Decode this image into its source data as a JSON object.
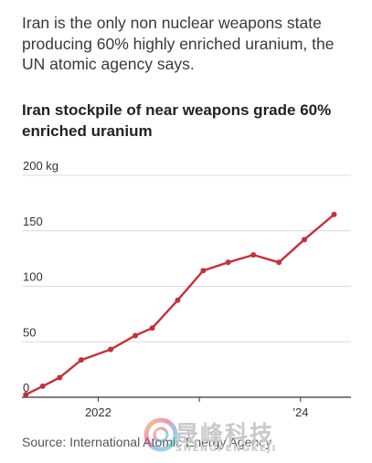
{
  "caption": "Iran is the only non nuclear weapons state producing 60% highly enriched uranium, the UN atomic agency says.",
  "chart_data": {
    "type": "line",
    "title": "Iran stockpile of near weapons grade 60% enriched uranium",
    "xlabel": "",
    "ylabel": "",
    "unit": "kg",
    "ylim": [
      0,
      200
    ],
    "yticks": [
      0,
      50,
      100,
      150,
      200
    ],
    "ytick_labels": [
      "0",
      "50",
      "100",
      "150",
      "200 kg"
    ],
    "xticks": [
      {
        "x": "2022-01-01",
        "label": "2022"
      },
      {
        "x": "2023-01-01",
        "label": ""
      },
      {
        "x": "2024-01-01",
        "label": "’24"
      }
    ],
    "xlim": [
      "2021-04-01",
      "2024-07-01"
    ],
    "grid": true,
    "series": [
      {
        "name": "",
        "color": "#c6303a",
        "points": [
          {
            "x": "2021-04-15",
            "y": 2.4
          },
          {
            "x": "2021-06-15",
            "y": 10
          },
          {
            "x": "2021-08-15",
            "y": 17.7
          },
          {
            "x": "2021-11-01",
            "y": 33.6
          },
          {
            "x": "2022-02-15",
            "y": 43.1
          },
          {
            "x": "2022-05-15",
            "y": 55.6
          },
          {
            "x": "2022-07-15",
            "y": 62.3
          },
          {
            "x": "2022-10-15",
            "y": 87.5
          },
          {
            "x": "2023-01-15",
            "y": 114.1
          },
          {
            "x": "2023-04-15",
            "y": 121.6
          },
          {
            "x": "2023-07-15",
            "y": 128.3
          },
          {
            "x": "2023-10-15",
            "y": 121.6
          },
          {
            "x": "2024-01-15",
            "y": 142.1
          },
          {
            "x": "2024-05-01",
            "y": 164.7
          }
        ]
      }
    ]
  },
  "source": "Source: International Atomic Energy Agency",
  "watermark": {
    "text": "晟峰科技",
    "subtext": "SHENGFENGKEJI"
  }
}
